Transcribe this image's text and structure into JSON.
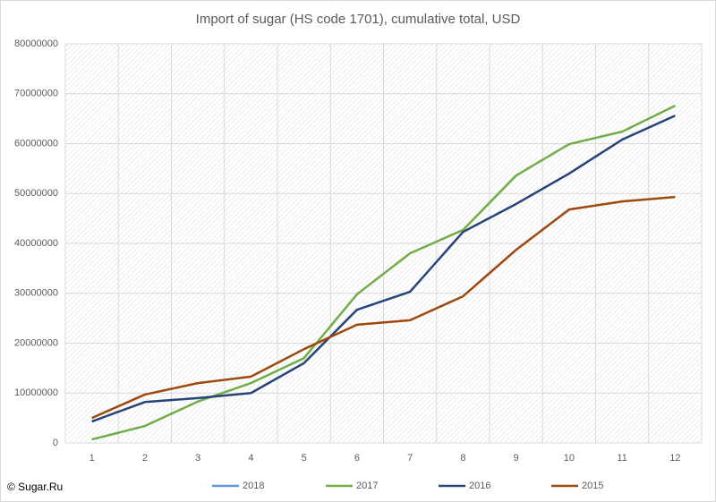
{
  "chart_data": {
    "type": "line",
    "title": "Import of sugar (HS code 1701), cumulative total, USD",
    "annotation": "© Sugar.Ru",
    "categories": [
      "1",
      "2",
      "3",
      "4",
      "5",
      "6",
      "7",
      "8",
      "9",
      "10",
      "11",
      "12"
    ],
    "series": [
      {
        "name": "2018",
        "color": "#5b9bd5",
        "values": [
          null,
          null,
          null,
          null,
          null,
          null,
          null,
          null,
          null,
          null,
          null,
          null
        ]
      },
      {
        "name": "2017",
        "color": "#70ad47",
        "values": [
          700000,
          3400000,
          8300000,
          12000000,
          17000000,
          29800000,
          38000000,
          42700000,
          53600000,
          59900000,
          62400000,
          67600000
        ]
      },
      {
        "name": "2016",
        "color": "#264478",
        "values": [
          4300000,
          8200000,
          9000000,
          10000000,
          16000000,
          26700000,
          30300000,
          42300000,
          47900000,
          54000000,
          60800000,
          65600000
        ]
      },
      {
        "name": "2015",
        "color": "#9e480e",
        "values": [
          5000000,
          9700000,
          12000000,
          13300000,
          18800000,
          23700000,
          24600000,
          29400000,
          38700000,
          46800000,
          48400000,
          49300000
        ]
      }
    ],
    "ylim": [
      0,
      80000000
    ],
    "yticks": [
      0,
      10000000,
      20000000,
      30000000,
      40000000,
      50000000,
      60000000,
      70000000,
      80000000
    ],
    "grid": true,
    "legend": "bottom"
  }
}
